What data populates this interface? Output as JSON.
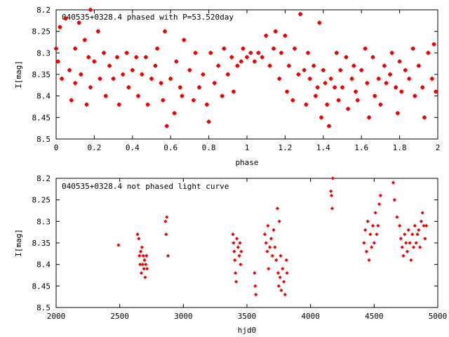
{
  "colors": {
    "points": "#ee0000",
    "axes": "#000000",
    "background": "#ffffff"
  },
  "chart_data": [
    {
      "type": "scatter",
      "title": "040535+0328.4 phased with P=53.520day",
      "xlabel": "phase",
      "ylabel": "I[mag]",
      "xlim": [
        0,
        2
      ],
      "ylim": [
        8.2,
        8.5
      ],
      "y_inverted": true,
      "grid": false,
      "legend": "none",
      "marker": "star",
      "xticks": [
        "0",
        "0.2",
        "0.4",
        "0.6",
        "0.8",
        "1",
        "1.2",
        "1.4",
        "1.6",
        "1.8",
        "2"
      ],
      "yticks": [
        "8.2",
        "8.25",
        "8.3",
        "8.35",
        "8.4",
        "8.45",
        "8.5"
      ],
      "points": [
        [
          0.0,
          8.29
        ],
        [
          0.01,
          8.32
        ],
        [
          0.02,
          8.24
        ],
        [
          0.03,
          8.36
        ],
        [
          0.05,
          8.22
        ],
        [
          0.07,
          8.34
        ],
        [
          0.08,
          8.41
        ],
        [
          0.1,
          8.29
        ],
        [
          0.1,
          8.37
        ],
        [
          0.12,
          8.23
        ],
        [
          0.13,
          8.35
        ],
        [
          0.15,
          8.27
        ],
        [
          0.16,
          8.42
        ],
        [
          0.17,
          8.31
        ],
        [
          0.18,
          8.2
        ],
        [
          0.18,
          8.38
        ],
        [
          0.2,
          8.32
        ],
        [
          0.22,
          8.25
        ],
        [
          0.23,
          8.36
        ],
        [
          0.25,
          8.3
        ],
        [
          0.26,
          8.4
        ],
        [
          0.28,
          8.33
        ],
        [
          0.3,
          8.36
        ],
        [
          0.32,
          8.31
        ],
        [
          0.33,
          8.42
        ],
        [
          0.35,
          8.35
        ],
        [
          0.37,
          8.3
        ],
        [
          0.38,
          8.38
        ],
        [
          0.4,
          8.34
        ],
        [
          0.42,
          8.31
        ],
        [
          0.43,
          8.4
        ],
        [
          0.45,
          8.35
        ],
        [
          0.47,
          8.31
        ],
        [
          0.48,
          8.42
        ],
        [
          0.5,
          8.36
        ],
        [
          0.52,
          8.33
        ],
        [
          0.53,
          8.29
        ],
        [
          0.55,
          8.37
        ],
        [
          0.56,
          8.41
        ],
        [
          0.57,
          8.25
        ],
        [
          0.58,
          8.47
        ],
        [
          0.6,
          8.36
        ],
        [
          0.62,
          8.44
        ],
        [
          0.63,
          8.32
        ],
        [
          0.65,
          8.38
        ],
        [
          0.66,
          8.4
        ],
        [
          0.67,
          8.27
        ],
        [
          0.7,
          8.34
        ],
        [
          0.72,
          8.41
        ],
        [
          0.73,
          8.3
        ],
        [
          0.75,
          8.38
        ],
        [
          0.77,
          8.35
        ],
        [
          0.79,
          8.42
        ],
        [
          0.8,
          8.46
        ],
        [
          0.81,
          8.3
        ],
        [
          0.83,
          8.37
        ],
        [
          0.85,
          8.33
        ],
        [
          0.87,
          8.4
        ],
        [
          0.88,
          8.29
        ],
        [
          0.9,
          8.35
        ],
        [
          0.92,
          8.31
        ],
        [
          0.93,
          8.39
        ],
        [
          0.95,
          8.33
        ],
        [
          0.97,
          8.32
        ],
        [
          0.98,
          8.29
        ],
        [
          1.0,
          8.31
        ],
        [
          1.02,
          8.3
        ],
        [
          1.04,
          8.32
        ],
        [
          1.06,
          8.3
        ],
        [
          1.08,
          8.31
        ],
        [
          1.1,
          8.26
        ],
        [
          1.12,
          8.33
        ],
        [
          1.14,
          8.29
        ],
        [
          1.15,
          8.25
        ],
        [
          1.17,
          8.36
        ],
        [
          1.18,
          8.3
        ],
        [
          1.2,
          8.26
        ],
        [
          1.21,
          8.39
        ],
        [
          1.22,
          8.33
        ],
        [
          1.24,
          8.41
        ],
        [
          1.25,
          8.29
        ],
        [
          1.27,
          8.35
        ],
        [
          1.28,
          8.21
        ],
        [
          1.3,
          8.34
        ],
        [
          1.31,
          8.42
        ],
        [
          1.32,
          8.3
        ],
        [
          1.33,
          8.36
        ],
        [
          1.35,
          8.33
        ],
        [
          1.36,
          8.4
        ],
        [
          1.37,
          8.38
        ],
        [
          1.38,
          8.23
        ],
        [
          1.39,
          8.45
        ],
        [
          1.4,
          8.34
        ],
        [
          1.41,
          8.37
        ],
        [
          1.42,
          8.42
        ],
        [
          1.43,
          8.47
        ],
        [
          1.44,
          8.36
        ],
        [
          1.46,
          8.38
        ],
        [
          1.47,
          8.3
        ],
        [
          1.48,
          8.41
        ],
        [
          1.49,
          8.34
        ],
        [
          1.5,
          8.38
        ],
        [
          1.52,
          8.31
        ],
        [
          1.53,
          8.43
        ],
        [
          1.55,
          8.36
        ],
        [
          1.56,
          8.33
        ],
        [
          1.57,
          8.39
        ],
        [
          1.58,
          8.41
        ],
        [
          1.6,
          8.34
        ],
        [
          1.62,
          8.29
        ],
        [
          1.63,
          8.37
        ],
        [
          1.64,
          8.45
        ],
        [
          1.66,
          8.31
        ],
        [
          1.67,
          8.4
        ],
        [
          1.69,
          8.36
        ],
        [
          1.7,
          8.42
        ],
        [
          1.72,
          8.33
        ],
        [
          1.73,
          8.37
        ],
        [
          1.75,
          8.35
        ],
        [
          1.76,
          8.3
        ],
        [
          1.78,
          8.38
        ],
        [
          1.79,
          8.44
        ],
        [
          1.8,
          8.32
        ],
        [
          1.81,
          8.39
        ],
        [
          1.83,
          8.34
        ],
        [
          1.85,
          8.36
        ],
        [
          1.87,
          8.29
        ],
        [
          1.88,
          8.4
        ],
        [
          1.9,
          8.33
        ],
        [
          1.92,
          8.38
        ],
        [
          1.93,
          8.45
        ],
        [
          1.95,
          8.3
        ],
        [
          1.97,
          8.36
        ],
        [
          1.98,
          8.28
        ],
        [
          1.99,
          8.39
        ]
      ]
    },
    {
      "type": "scatter",
      "title": "040535+0328.4 not phased light curve",
      "xlabel": "hjd0",
      "ylabel": "I[mag]",
      "xlim": [
        2000,
        5000
      ],
      "ylim": [
        8.2,
        8.5
      ],
      "y_inverted": true,
      "grid": false,
      "legend": "none",
      "marker": "diamond",
      "xticks": [
        "2000",
        "2500",
        "3000",
        "3500",
        "4000",
        "4500",
        "5000"
      ],
      "yticks": [
        "8.2",
        "8.25",
        "8.3",
        "8.35",
        "8.4",
        "8.45",
        "8.5"
      ],
      "points": [
        [
          2490,
          8.355
        ],
        [
          2640,
          8.33
        ],
        [
          2650,
          8.34
        ],
        [
          2655,
          8.38
        ],
        [
          2660,
          8.4
        ],
        [
          2665,
          8.37
        ],
        [
          2670,
          8.42
        ],
        [
          2675,
          8.36
        ],
        [
          2680,
          8.4
        ],
        [
          2685,
          8.38
        ],
        [
          2690,
          8.41
        ],
        [
          2695,
          8.39
        ],
        [
          2700,
          8.43
        ],
        [
          2705,
          8.4
        ],
        [
          2710,
          8.38
        ],
        [
          2715,
          8.41
        ],
        [
          2860,
          8.3
        ],
        [
          2865,
          8.33
        ],
        [
          2870,
          8.29
        ],
        [
          2880,
          8.38
        ],
        [
          3390,
          8.33
        ],
        [
          3395,
          8.35
        ],
        [
          3400,
          8.37
        ],
        [
          3405,
          8.39
        ],
        [
          3410,
          8.42
        ],
        [
          3415,
          8.44
        ],
        [
          3420,
          8.34
        ],
        [
          3430,
          8.36
        ],
        [
          3440,
          8.38
        ],
        [
          3445,
          8.35
        ],
        [
          3450,
          8.4
        ],
        [
          3455,
          8.37
        ],
        [
          3560,
          8.42
        ],
        [
          3565,
          8.45
        ],
        [
          3570,
          8.47
        ],
        [
          3640,
          8.33
        ],
        [
          3650,
          8.35
        ],
        [
          3660,
          8.37
        ],
        [
          3665,
          8.31
        ],
        [
          3670,
          8.41
        ],
        [
          3680,
          8.36
        ],
        [
          3690,
          8.34
        ],
        [
          3700,
          8.38
        ],
        [
          3710,
          8.32
        ],
        [
          3720,
          8.36
        ],
        [
          3730,
          8.39
        ],
        [
          3740,
          8.27
        ],
        [
          3745,
          8.42
        ],
        [
          3750,
          8.45
        ],
        [
          3755,
          8.3
        ],
        [
          3760,
          8.43
        ],
        [
          3765,
          8.38
        ],
        [
          3770,
          8.46
        ],
        [
          3780,
          8.41
        ],
        [
          3790,
          8.44
        ],
        [
          3800,
          8.47
        ],
        [
          3810,
          8.39
        ],
        [
          3815,
          8.42
        ],
        [
          4160,
          8.23
        ],
        [
          4165,
          8.24
        ],
        [
          4170,
          8.27
        ],
        [
          4175,
          8.2
        ],
        [
          4420,
          8.35
        ],
        [
          4430,
          8.32
        ],
        [
          4440,
          8.37
        ],
        [
          4450,
          8.3
        ],
        [
          4460,
          8.39
        ],
        [
          4470,
          8.33
        ],
        [
          4480,
          8.36
        ],
        [
          4490,
          8.31
        ],
        [
          4500,
          8.35
        ],
        [
          4510,
          8.28
        ],
        [
          4520,
          8.33
        ],
        [
          4530,
          8.31
        ],
        [
          4540,
          8.26
        ],
        [
          4550,
          8.24
        ],
        [
          4650,
          8.21
        ],
        [
          4660,
          8.25
        ],
        [
          4680,
          8.29
        ],
        [
          4700,
          8.31
        ],
        [
          4710,
          8.34
        ],
        [
          4720,
          8.36
        ],
        [
          4730,
          8.38
        ],
        [
          4740,
          8.33
        ],
        [
          4750,
          8.35
        ],
        [
          4760,
          8.37
        ],
        [
          4770,
          8.32
        ],
        [
          4780,
          8.35
        ],
        [
          4790,
          8.39
        ],
        [
          4800,
          8.33
        ],
        [
          4810,
          8.36
        ],
        [
          4820,
          8.31
        ],
        [
          4830,
          8.35
        ],
        [
          4840,
          8.33
        ],
        [
          4850,
          8.32
        ],
        [
          4860,
          8.36
        ],
        [
          4870,
          8.3
        ],
        [
          4880,
          8.28
        ],
        [
          4890,
          8.31
        ],
        [
          4900,
          8.34
        ],
        [
          4910,
          8.31
        ]
      ]
    }
  ]
}
